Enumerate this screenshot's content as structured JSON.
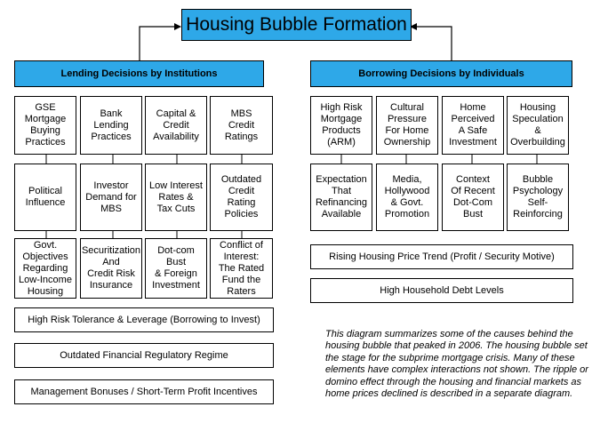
{
  "title": "Housing Bubble Formation",
  "lending": {
    "header": "Lending Decisions by Institutions",
    "columns": [
      [
        "GSE\nMortgage\nBuying\nPractices",
        "Political\nInfluence",
        "Govt.\nObjectives\nRegarding\nLow-Income\nHousing"
      ],
      [
        "Bank\nLending\nPractices",
        "Investor\nDemand for\nMBS",
        "Securitization\nAnd\nCredit Risk\nInsurance"
      ],
      [
        "Capital &\nCredit\nAvailability",
        "Low Interest\nRates &\nTax Cuts",
        "Dot-com\nBust\n& Foreign\nInvestment"
      ],
      [
        "MBS\nCredit\nRatings",
        "Outdated\nCredit\nRating\nPolicies",
        "Conflict of\nInterest:\nThe Rated\nFund the\nRaters"
      ]
    ],
    "bars": [
      "High Risk Tolerance & Leverage (Borrowing to Invest)",
      "Outdated Financial Regulatory Regime",
      "Management Bonuses / Short-Term Profit Incentives"
    ]
  },
  "borrowing": {
    "header": "Borrowing Decisions by Individuals",
    "columns": [
      [
        "High Risk\nMortgage\nProducts\n(ARM)",
        "Expectation\nThat\nRefinancing\nAvailable"
      ],
      [
        "Cultural\nPressure\nFor Home\nOwnership",
        "Media,\nHollywood\n& Govt.\nPromotion"
      ],
      [
        "Home\nPerceived\nA Safe\nInvestment",
        "Context\nOf Recent\nDot-Com\nBust"
      ],
      [
        "Housing\nSpeculation\n&\nOverbuilding",
        "Bubble\nPsychology\nSelf-\nReinforcing"
      ]
    ],
    "bars": [
      "Rising Housing Price Trend (Profit / Security Motive)",
      "High Household Debt Levels"
    ]
  },
  "caption": "This diagram summarizes some of the causes behind the housing bubble that peaked in 2006.  The housing bubble set the stage for the subprime mortgage crisis.  Many of these elements have complex interactions not shown.  The ripple or domino effect through the housing and financial markets as home prices declined is described in a separate diagram."
}
